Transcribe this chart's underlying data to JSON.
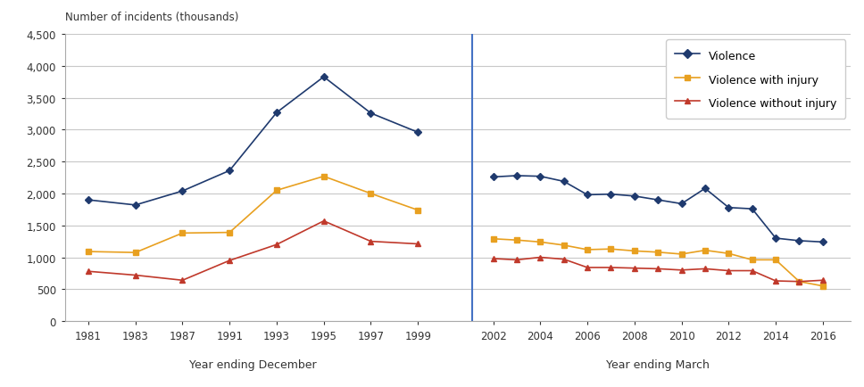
{
  "ylabel": "Number of incidents (thousands)",
  "xlabel_dec": "Year ending December",
  "xlabel_mar": "Year ending March",
  "ylim": [
    0,
    4500
  ],
  "yticks": [
    0,
    500,
    1000,
    1500,
    2000,
    2500,
    3000,
    3500,
    4000,
    4500
  ],
  "dec_labels": [
    "1981",
    "1983",
    "1987",
    "1991",
    "1993",
    "1995",
    "1997",
    "1999"
  ],
  "dec_pos": [
    0,
    1,
    2,
    3,
    4,
    5,
    6,
    7
  ],
  "violence_dec": [
    1900,
    1820,
    2040,
    2360,
    3270,
    3830,
    3260,
    2960
  ],
  "inj_dec": [
    1090,
    1075,
    1380,
    1390,
    2050,
    2270,
    2000,
    1740
  ],
  "noinj_dec": [
    780,
    720,
    640,
    950,
    1200,
    1570,
    1250,
    1210
  ],
  "mar_labels": [
    "2002",
    "2004",
    "2006",
    "2008",
    "2010",
    "2012",
    "2014",
    "2016"
  ],
  "mar_pos": [
    8.6,
    9.6,
    10.6,
    11.6,
    12.6,
    13.6,
    14.6,
    15.6
  ],
  "mar_data_years": [
    2002,
    2003,
    2004,
    2005,
    2006,
    2007,
    2008,
    2009,
    2010,
    2011,
    2012,
    2013,
    2014,
    2015,
    2016
  ],
  "mar_data_pos": [
    8.6,
    9.1,
    9.6,
    10.1,
    10.6,
    11.1,
    11.6,
    12.1,
    12.6,
    13.1,
    13.6,
    14.1,
    14.6,
    15.1,
    15.6
  ],
  "violence_mar": [
    2260,
    2280,
    2270,
    2190,
    1980,
    1990,
    1960,
    1900,
    1840,
    2080,
    1780,
    1760,
    1300,
    1260,
    1240
  ],
  "inj_mar": [
    1290,
    1270,
    1240,
    1190,
    1120,
    1130,
    1100,
    1080,
    1050,
    1110,
    1060,
    960,
    960,
    620,
    550
  ],
  "noinj_mar": [
    980,
    960,
    1000,
    970,
    840,
    840,
    830,
    820,
    800,
    820,
    790,
    790,
    630,
    620,
    640
  ],
  "color_violence": "#1f3a6e",
  "color_injury": "#e8a020",
  "color_noinjury": "#c0392b",
  "legend_labels": [
    "Violence",
    "Violence with injury",
    "Violence without injury"
  ],
  "separator_color": "#4472c4",
  "separator_x": 8.15,
  "background_color": "#ffffff",
  "grid_color": "#c8c8c8",
  "xlim": [
    -0.5,
    16.2
  ]
}
